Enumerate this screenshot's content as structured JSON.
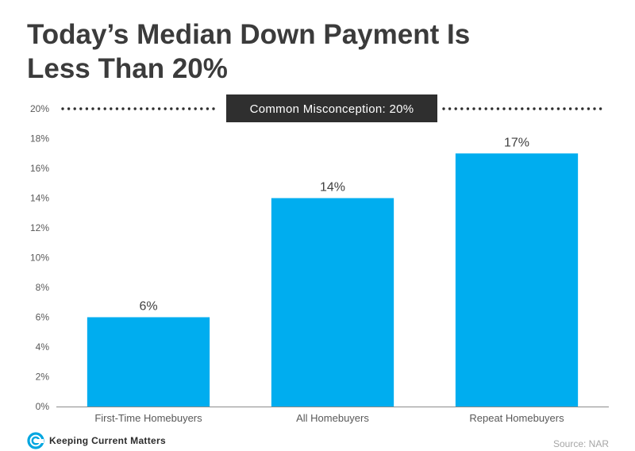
{
  "title": {
    "line1": "Today’s Median Down Payment Is",
    "line2": "Less Than 20%"
  },
  "chart_data": {
    "type": "bar",
    "categories": [
      "First-Time Homebuyers",
      "All Homebuyers",
      "Repeat Homebuyers"
    ],
    "values": [
      6,
      14,
      17
    ],
    "data_labels": [
      "6%",
      "14%",
      "17%"
    ],
    "ylim": [
      0,
      20
    ],
    "y_ticks": [
      0,
      2,
      4,
      6,
      8,
      10,
      12,
      14,
      16,
      18,
      20
    ],
    "y_tick_labels": [
      "0%",
      "2%",
      "4%",
      "6%",
      "8%",
      "10%",
      "12%",
      "14%",
      "16%",
      "18%",
      "20%"
    ],
    "reference_line": {
      "value": 20,
      "style": "dotted",
      "label": "Common Misconception: 20%"
    },
    "bar_color": "#00adef",
    "grid": false,
    "xlabel": "",
    "ylabel": ""
  },
  "footer": {
    "brand": "Keeping Current Matters",
    "brand_icon": "kcm-swirl-icon",
    "source": "Source: NAR"
  }
}
